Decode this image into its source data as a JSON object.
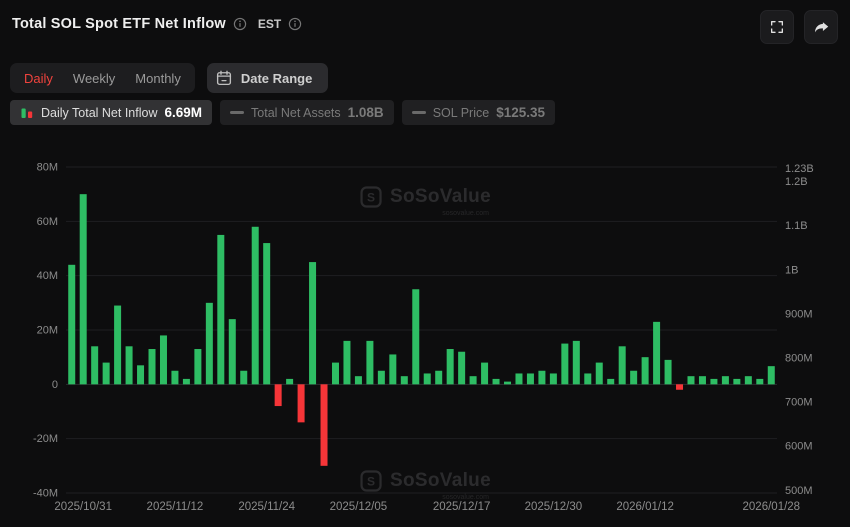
{
  "header": {
    "title": "Total SOL Spot ETF Net Inflow",
    "timezone_label": "EST"
  },
  "toolbar": {
    "tabs": {
      "daily": "Daily",
      "weekly": "Weekly",
      "monthly": "Monthly"
    },
    "date_range_label": "Date Range"
  },
  "legend": {
    "items": [
      {
        "label": "Daily Total Net Inflow",
        "value": "6.69M",
        "active": true
      },
      {
        "label": "Total Net Assets",
        "value": "1.08B",
        "active": false
      },
      {
        "label": "SOL Price",
        "value": "$125.35",
        "active": false
      }
    ]
  },
  "watermark": {
    "text": "SoSoValue",
    "sub": "sosovalue.com"
  },
  "chart_data": {
    "type": "bar",
    "title": "Total SOL Spot ETF Net Inflow",
    "series_name": "Daily Total Net Inflow",
    "unit": "M USD",
    "values": [
      44,
      70,
      14,
      8,
      29,
      14,
      7,
      13,
      18,
      5,
      2,
      13,
      30,
      55,
      24,
      5,
      58,
      52,
      -8,
      2,
      -14,
      45,
      -30,
      8,
      16,
      3,
      16,
      5,
      11,
      3,
      35,
      4,
      5,
      13,
      12,
      3,
      8,
      2,
      1,
      4,
      4,
      5,
      4,
      15,
      16,
      4,
      8,
      2,
      14,
      5,
      10,
      23,
      9,
      -2,
      3,
      3,
      2,
      3,
      2,
      3,
      2,
      6.69
    ],
    "colors": {
      "positive": "#2ebd64",
      "negative": "#f63538",
      "grid": "#1f1f22",
      "zero_line": "#2c2c30",
      "axis_text": "#8c8c8c"
    },
    "left_axis": {
      "min": -40,
      "max": 80,
      "ticks": [
        {
          "label": "80M",
          "value": 80
        },
        {
          "label": "60M",
          "value": 60
        },
        {
          "label": "40M",
          "value": 40
        },
        {
          "label": "20M",
          "value": 20
        },
        {
          "label": "0",
          "value": 0
        },
        {
          "label": "-20M",
          "value": -20
        },
        {
          "label": "-40M",
          "value": -40
        }
      ]
    },
    "right_axis": {
      "min": 494,
      "max": 1233,
      "ticks": [
        {
          "label": "1.23B",
          "value": 1230
        },
        {
          "label": "1.2B",
          "value": 1200
        },
        {
          "label": "1.1B",
          "value": 1100
        },
        {
          "label": "1B",
          "value": 1000
        },
        {
          "label": "900M",
          "value": 900
        },
        {
          "label": "800M",
          "value": 800
        },
        {
          "label": "700M",
          "value": 700
        },
        {
          "label": "600M",
          "value": 600
        },
        {
          "label": "500M",
          "value": 500
        }
      ]
    },
    "x_ticks": [
      {
        "label": "2025/10/31",
        "index": 1
      },
      {
        "label": "2025/11/12",
        "index": 9
      },
      {
        "label": "2025/11/24",
        "index": 17
      },
      {
        "label": "2025/12/05",
        "index": 25
      },
      {
        "label": "2025/12/17",
        "index": 34
      },
      {
        "label": "2025/12/30",
        "index": 42
      },
      {
        "label": "2026/01/12",
        "index": 50
      },
      {
        "label": "2026/01/28",
        "index": 61
      }
    ],
    "grid": true,
    "legend_position": "top"
  }
}
